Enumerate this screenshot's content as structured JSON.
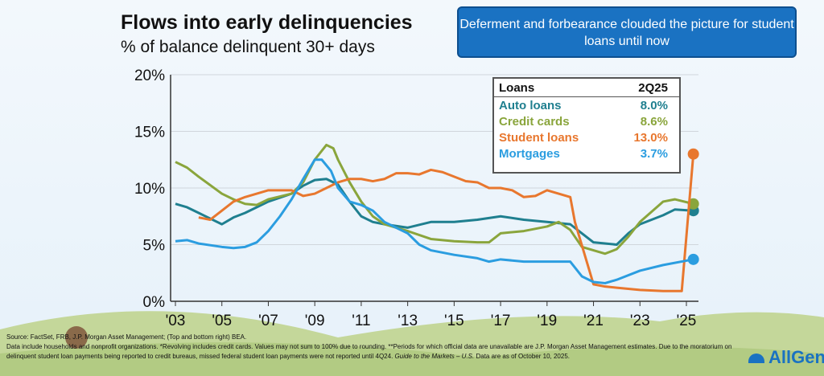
{
  "chart_data": {
    "type": "line",
    "title": "Flows into early delinquencies",
    "subtitle": "% of balance delinquent 30+ days",
    "ylim": [
      0,
      20
    ],
    "xlim": [
      2003,
      2025.6
    ],
    "yticks": [
      {
        "v": 0,
        "label": "0%"
      },
      {
        "v": 5,
        "label": "5%"
      },
      {
        "v": 10,
        "label": "10%"
      },
      {
        "v": 15,
        "label": "15%"
      },
      {
        "v": 20,
        "label": "20%"
      }
    ],
    "xticks": [
      {
        "v": 2003,
        "label": "'03"
      },
      {
        "v": 2005,
        "label": "'05"
      },
      {
        "v": 2007,
        "label": "'07"
      },
      {
        "v": 2009,
        "label": "'09"
      },
      {
        "v": 2011,
        "label": "'11"
      },
      {
        "v": 2013,
        "label": "'13"
      },
      {
        "v": 2015,
        "label": "'15"
      },
      {
        "v": 2017,
        "label": "'17"
      },
      {
        "v": 2019,
        "label": "'19"
      },
      {
        "v": 2021,
        "label": "'21"
      },
      {
        "v": 2023,
        "label": "'23"
      },
      {
        "v": 2025,
        "label": "'25"
      }
    ],
    "series": [
      {
        "name": "Auto loans",
        "color": "#1f7f8f",
        "value_label": "8.0%",
        "points": [
          [
            2003,
            8.6
          ],
          [
            2003.5,
            8.3
          ],
          [
            2004,
            7.8
          ],
          [
            2004.5,
            7.3
          ],
          [
            2005,
            6.8
          ],
          [
            2005.5,
            7.4
          ],
          [
            2006,
            7.8
          ],
          [
            2007,
            8.8
          ],
          [
            2008,
            9.5
          ],
          [
            2008.5,
            10.2
          ],
          [
            2009,
            10.7
          ],
          [
            2009.5,
            10.8
          ],
          [
            2010,
            10.3
          ],
          [
            2010.5,
            8.8
          ],
          [
            2011,
            7.5
          ],
          [
            2011.5,
            7.0
          ],
          [
            2012,
            6.8
          ],
          [
            2013,
            6.5
          ],
          [
            2014,
            7.0
          ],
          [
            2015,
            7.0
          ],
          [
            2016,
            7.2
          ],
          [
            2017,
            7.5
          ],
          [
            2018,
            7.2
          ],
          [
            2019,
            7.0
          ],
          [
            2020,
            6.8
          ],
          [
            2020.5,
            6.0
          ],
          [
            2021,
            5.2
          ],
          [
            2022,
            5.0
          ],
          [
            2022.5,
            6.0
          ],
          [
            2023,
            6.8
          ],
          [
            2024,
            7.6
          ],
          [
            2024.5,
            8.1
          ],
          [
            2025.3,
            8.0
          ]
        ]
      },
      {
        "name": "Credit cards",
        "color": "#8aa53c",
        "value_label": "8.6%",
        "points": [
          [
            2003,
            12.3
          ],
          [
            2003.5,
            11.8
          ],
          [
            2004,
            11.0
          ],
          [
            2005,
            9.5
          ],
          [
            2005.5,
            9.0
          ],
          [
            2006,
            8.6
          ],
          [
            2006.5,
            8.5
          ],
          [
            2007,
            9.0
          ],
          [
            2008,
            9.5
          ],
          [
            2008.5,
            10.5
          ],
          [
            2009,
            12.5
          ],
          [
            2009.5,
            13.8
          ],
          [
            2009.8,
            13.5
          ],
          [
            2010,
            12.5
          ],
          [
            2010.5,
            10.5
          ],
          [
            2011,
            8.8
          ],
          [
            2011.5,
            7.5
          ],
          [
            2012,
            6.8
          ],
          [
            2013,
            6.2
          ],
          [
            2014,
            5.5
          ],
          [
            2015,
            5.3
          ],
          [
            2016,
            5.2
          ],
          [
            2016.5,
            5.2
          ],
          [
            2017,
            6.0
          ],
          [
            2018,
            6.2
          ],
          [
            2019,
            6.6
          ],
          [
            2019.5,
            7.0
          ],
          [
            2020,
            6.3
          ],
          [
            2020.5,
            4.8
          ],
          [
            2021,
            4.5
          ],
          [
            2021.5,
            4.2
          ],
          [
            2022,
            4.6
          ],
          [
            2022.5,
            5.7
          ],
          [
            2023,
            7.0
          ],
          [
            2024,
            8.8
          ],
          [
            2024.5,
            9.0
          ],
          [
            2025.3,
            8.6
          ]
        ]
      },
      {
        "name": "Student loans",
        "color": "#e8772e",
        "value_label": "13.0%",
        "points": [
          [
            2004,
            7.4
          ],
          [
            2004.5,
            7.2
          ],
          [
            2005,
            8.0
          ],
          [
            2005.5,
            8.8
          ],
          [
            2006,
            9.2
          ],
          [
            2007,
            9.8
          ],
          [
            2008,
            9.8
          ],
          [
            2008.5,
            9.3
          ],
          [
            2009,
            9.5
          ],
          [
            2009.5,
            10.0
          ],
          [
            2010,
            10.5
          ],
          [
            2010.5,
            10.8
          ],
          [
            2011,
            10.8
          ],
          [
            2011.5,
            10.6
          ],
          [
            2012,
            10.8
          ],
          [
            2012.5,
            11.3
          ],
          [
            2013,
            11.3
          ],
          [
            2013.5,
            11.2
          ],
          [
            2014,
            11.6
          ],
          [
            2014.5,
            11.4
          ],
          [
            2015,
            11.0
          ],
          [
            2015.5,
            10.6
          ],
          [
            2016,
            10.5
          ],
          [
            2016.5,
            10.0
          ],
          [
            2017,
            10.0
          ],
          [
            2017.5,
            9.8
          ],
          [
            2018,
            9.2
          ],
          [
            2018.5,
            9.3
          ],
          [
            2019,
            9.8
          ],
          [
            2019.5,
            9.5
          ],
          [
            2020,
            9.2
          ],
          [
            2020.2,
            7.0
          ],
          [
            2021,
            1.5
          ],
          [
            2021.5,
            1.3
          ],
          [
            2022,
            1.2
          ],
          [
            2023,
            1.0
          ],
          [
            2024,
            0.9
          ],
          [
            2024.8,
            0.9
          ],
          [
            2025.3,
            13.0
          ]
        ]
      },
      {
        "name": "Mortgages",
        "color": "#2b9de0",
        "value_label": "3.7%",
        "points": [
          [
            2003,
            5.3
          ],
          [
            2003.5,
            5.4
          ],
          [
            2004,
            5.1
          ],
          [
            2005,
            4.8
          ],
          [
            2005.5,
            4.7
          ],
          [
            2006,
            4.8
          ],
          [
            2006.5,
            5.2
          ],
          [
            2007,
            6.2
          ],
          [
            2007.5,
            7.5
          ],
          [
            2008,
            9.0
          ],
          [
            2008.5,
            10.8
          ],
          [
            2009,
            12.5
          ],
          [
            2009.3,
            12.5
          ],
          [
            2009.7,
            11.5
          ],
          [
            2010,
            10.0
          ],
          [
            2010.5,
            8.8
          ],
          [
            2011,
            8.5
          ],
          [
            2011.5,
            8.0
          ],
          [
            2012,
            7.0
          ],
          [
            2013,
            6.0
          ],
          [
            2013.5,
            5.0
          ],
          [
            2014,
            4.5
          ],
          [
            2015,
            4.1
          ],
          [
            2016,
            3.8
          ],
          [
            2016.5,
            3.5
          ],
          [
            2017,
            3.7
          ],
          [
            2018,
            3.5
          ],
          [
            2019,
            3.5
          ],
          [
            2020,
            3.5
          ],
          [
            2020.5,
            2.2
          ],
          [
            2021,
            1.7
          ],
          [
            2021.5,
            1.6
          ],
          [
            2022,
            1.9
          ],
          [
            2023,
            2.7
          ],
          [
            2024,
            3.2
          ],
          [
            2025.3,
            3.7
          ]
        ]
      }
    ],
    "legend": {
      "header_label": "Loans",
      "header_period": "2Q25",
      "placement": "top-right"
    }
  },
  "callout": "Deferment and forbearance clouded the picture for student loans until now",
  "footnote": {
    "line1": "Source: FactSet, FRB, J.P. Morgan Asset Management; (Top and bottom right) BEA.",
    "line2": "Data include households and nonprofit organizations. *Revolving includes credit cards. Values may not sum to 100% due to rounding. **Periods for which official data are unavailable are J.P. Morgan Asset Management estimates. Due to the moratorium on delinquent student loan payments being reported to credit bureaus, missed federal student loan payments were not reported until 4Q24.",
    "guide": "Guide to the Markets – U.S.",
    "line3": "Data are as of October 10, 2025."
  },
  "logo": "AllGen"
}
